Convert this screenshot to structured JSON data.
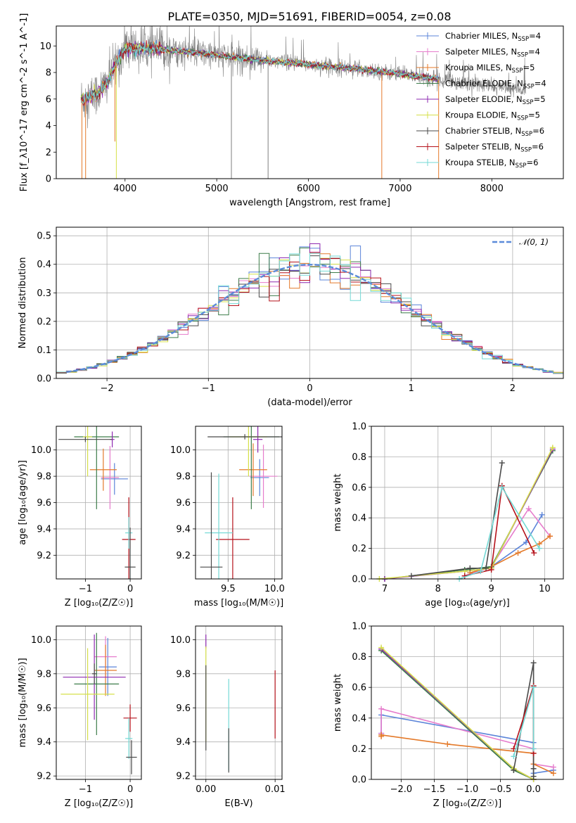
{
  "page": {
    "title": "PLATE=0350, MJD=51691, FIBERID=0054, z=0.08"
  },
  "colors": {
    "chabrier_miles": "#5b84d9",
    "salpeter_miles": "#e67ccc",
    "kroupa_miles": "#e47a2a",
    "chabrier_elodie": "#3d7d4a",
    "salpeter_elodie": "#8e29b0",
    "kroupa_elodie": "#d6e04a",
    "chabrier_stelib": "#4a4a4a",
    "salpeter_stelib": "#b5121b",
    "kroupa_stelib": "#74d9d5",
    "normal": "#5b8bd9",
    "data": "#808080"
  },
  "legend_spectrum": [
    {
      "key": "chabrier_miles",
      "label": "Chabrier MILES, N",
      "sub": "SSP",
      "suffix": "=4"
    },
    {
      "key": "salpeter_miles",
      "label": "Salpeter MILES, N",
      "sub": "SSP",
      "suffix": "=4"
    },
    {
      "key": "kroupa_miles",
      "label": "Kroupa MILES, N",
      "sub": "SSP",
      "suffix": "=5"
    },
    {
      "key": "chabrier_elodie",
      "label": "Chabrier ELODIE, N",
      "sub": "SSP",
      "suffix": "=4"
    },
    {
      "key": "salpeter_elodie",
      "label": "Salpeter ELODIE, N",
      "sub": "SSP",
      "suffix": "=5"
    },
    {
      "key": "kroupa_elodie",
      "label": "Kroupa ELODIE, N",
      "sub": "SSP",
      "suffix": "=5"
    },
    {
      "key": "chabrier_stelib",
      "label": "Chabrier STELIB, N",
      "sub": "SSP",
      "suffix": "=6"
    },
    {
      "key": "salpeter_stelib",
      "label": "Salpeter STELIB, N",
      "sub": "SSP",
      "suffix": "=6"
    },
    {
      "key": "kroupa_stelib",
      "label": "Kroupa STELIB, N",
      "sub": "SSP",
      "suffix": "=6"
    }
  ],
  "chart_data": [
    {
      "id": "spectrum",
      "type": "line",
      "xlabel": "wavelength [Angstrom, rest frame]",
      "ylabel": "Flux [f_λ10^-17 erg cm^-2 s^-1 A^-1]",
      "xlim": [
        3250,
        8780
      ],
      "ylim": [
        0,
        11.5
      ],
      "xticks": [
        4000,
        5000,
        6000,
        7000,
        8000
      ],
      "yticks": [
        0,
        2,
        4,
        6,
        8,
        10
      ],
      "continuum": [
        [
          3550,
          6.0
        ],
        [
          3700,
          6.4
        ],
        [
          3800,
          7.2
        ],
        [
          3900,
          8.6
        ],
        [
          4000,
          9.8
        ],
        [
          4300,
          9.8
        ],
        [
          4600,
          9.6
        ],
        [
          5000,
          9.3
        ],
        [
          5500,
          8.9
        ],
        [
          6000,
          8.6
        ],
        [
          6500,
          8.3
        ],
        [
          7000,
          7.9
        ],
        [
          7400,
          7.5
        ]
      ],
      "data_range": [
        3520,
        8370
      ],
      "model_range": [
        3520,
        7420
      ],
      "dips": [
        {
          "x": 3530,
          "y": 0.0
        },
        {
          "x": 3570,
          "y": 0.0
        },
        {
          "x": 3890,
          "y": 2.8
        },
        {
          "x": 3905,
          "y": 0.0
        },
        {
          "x": 5160,
          "y": 0.0
        },
        {
          "x": 5560,
          "y": 0.0
        },
        {
          "x": 6800,
          "y": 0.0
        },
        {
          "x": 7420,
          "y": 0.0
        }
      ],
      "grid": false,
      "legend": "top-right"
    },
    {
      "id": "residuals",
      "type": "area",
      "xlabel": "(data-model)/error",
      "ylabel": "Normed distribution",
      "xlim": [
        -2.5,
        2.5
      ],
      "ylim": [
        0,
        0.53
      ],
      "xticks": [
        -2,
        -1,
        0,
        1,
        2
      ],
      "xtick_labels": [
        "−2",
        "−1",
        "0",
        "1",
        "2"
      ],
      "yticks": [
        0.0,
        0.1,
        0.2,
        0.3,
        0.4,
        0.5
      ],
      "ytick_labels": [
        "0.0",
        "0.1",
        "0.2",
        "0.3",
        "0.4",
        "0.5"
      ],
      "bin_width": 0.1,
      "bins_start": -2.5,
      "normal_label": "𝒩(0, 1)",
      "normal_mean": 0,
      "normal_sigma": 1,
      "grid": true,
      "legend": "top-right"
    },
    {
      "id": "age_vs_Z",
      "type": "scatter",
      "xlabel": "Z [log₁₀(Z/Z☉)]",
      "ylabel": "age  [log₁₀(age/yr)]",
      "xlim": [
        -1.65,
        0.25
      ],
      "ylim": [
        9.02,
        10.18
      ],
      "xticks": [
        -1,
        0
      ],
      "xtick_labels": [
        "−1",
        "0"
      ],
      "yticks": [
        9.2,
        9.4,
        9.6,
        9.8,
        10.0
      ],
      "ytick_labels": [
        "9.2",
        "9.4",
        "9.6",
        "9.8",
        "10.0"
      ],
      "points": [
        {
          "key": "chabrier_miles",
          "x": -0.35,
          "y": 9.78,
          "xerr": 0.3,
          "yerr": 0.12
        },
        {
          "key": "salpeter_miles",
          "x": -0.45,
          "y": 9.79,
          "xerr": 0.2,
          "yerr": 0.24
        },
        {
          "key": "kroupa_miles",
          "x": -0.6,
          "y": 9.85,
          "xerr": 0.3,
          "yerr": 0.16
        },
        {
          "key": "chabrier_elodie",
          "x": -0.75,
          "y": 10.1,
          "xerr": 0.5,
          "yerr": 0.55
        },
        {
          "key": "salpeter_elodie",
          "x": -0.4,
          "y": 10.08,
          "xerr": 0.05,
          "yerr": 0.06
        },
        {
          "key": "kroupa_elodie",
          "x": -0.95,
          "y": 10.1,
          "xerr": 0.1,
          "yerr": 0.3
        },
        {
          "key": "chabrier_stelib",
          "x": -1.0,
          "y": 10.08,
          "xerr": 0.6,
          "yerr": 0.02
        },
        {
          "key": "salpeter_stelib",
          "x": -0.03,
          "y": 9.32,
          "xerr": 0.15,
          "yerr": 0.32
        },
        {
          "key": "kroupa_stelib",
          "x": -0.03,
          "y": 9.37,
          "xerr": 0.08,
          "yerr": 0.12
        },
        {
          "key": "chabrier_stelib",
          "x": 0.0,
          "y": 9.11,
          "xerr": 0.12,
          "yerr": 0.3
        }
      ],
      "grid": true
    },
    {
      "id": "age_vs_mass",
      "type": "scatter",
      "xlabel": "mass [log₁₀(M/M☉)]",
      "ylabel": "",
      "xlim": [
        9.15,
        10.08
      ],
      "ylim": [
        9.02,
        10.18
      ],
      "xticks": [
        9.5,
        10.0
      ],
      "xtick_labels": [
        "9.5",
        "10.0"
      ],
      "yticks": [
        9.2,
        9.4,
        9.6,
        9.8,
        10.0
      ],
      "ytick_labels": [
        "9.2",
        "9.4",
        "9.6",
        "9.8",
        "10.0"
      ],
      "points": [
        {
          "key": "chabrier_miles",
          "x": 9.84,
          "y": 9.79,
          "xerr": 0.1,
          "yerr": 0.14
        },
        {
          "key": "salpeter_miles",
          "x": 9.88,
          "y": 9.8,
          "xerr": 0.15,
          "yerr": 0.24
        },
        {
          "key": "kroupa_miles",
          "x": 9.77,
          "y": 9.85,
          "xerr": 0.15,
          "yerr": 0.2
        },
        {
          "key": "chabrier_elodie",
          "x": 9.75,
          "y": 10.1,
          "xerr": 0.3,
          "yerr": 0.55
        },
        {
          "key": "salpeter_elodie",
          "x": 9.82,
          "y": 10.08,
          "xerr": 0.05,
          "yerr": 0.1
        },
        {
          "key": "kroupa_elodie",
          "x": 9.72,
          "y": 10.1,
          "xerr": 0.2,
          "yerr": 0.3
        },
        {
          "key": "chabrier_stelib",
          "x": 9.68,
          "y": 10.1,
          "xerr": 0.4,
          "yerr": 0.02
        },
        {
          "key": "salpeter_stelib",
          "x": 9.55,
          "y": 9.32,
          "xerr": 0.18,
          "yerr": 0.32
        },
        {
          "key": "kroupa_stelib",
          "x": 9.4,
          "y": 9.37,
          "xerr": 0.15,
          "yerr": 0.45
        },
        {
          "key": "chabrier_stelib",
          "x": 9.32,
          "y": 9.11,
          "xerr": 0.12,
          "yerr": 0.72
        }
      ],
      "grid": true
    },
    {
      "id": "weight_vs_age",
      "type": "line",
      "xlabel": "age  [log₁₀(age/yr)]",
      "ylabel": "mass weight",
      "xlim": [
        6.75,
        10.35
      ],
      "ylim": [
        0,
        1.0
      ],
      "xticks": [
        7,
        8,
        9,
        10
      ],
      "xtick_labels": [
        "7",
        "8",
        "9",
        "10"
      ],
      "yticks": [
        0.0,
        0.2,
        0.4,
        0.6,
        0.8,
        1.0
      ],
      "ytick_labels": [
        "0.0",
        "0.2",
        "0.4",
        "0.6",
        "0.8",
        "1.0"
      ],
      "series": [
        {
          "key": "chabrier_miles",
          "x": [
            8.5,
            9.0,
            9.65,
            9.95
          ],
          "y": [
            0.02,
            0.08,
            0.24,
            0.42
          ]
        },
        {
          "key": "salpeter_miles",
          "x": [
            8.5,
            9.0,
            9.7,
            10.1
          ],
          "y": [
            0.02,
            0.08,
            0.46,
            0.28
          ]
        },
        {
          "key": "kroupa_miles",
          "x": [
            8.6,
            9.0,
            9.5,
            9.9,
            10.1
          ],
          "y": [
            0.04,
            0.08,
            0.17,
            0.23,
            0.28
          ]
        },
        {
          "key": "chabrier_elodie",
          "x": [
            7.0,
            8.5,
            9.0,
            10.15
          ],
          "y": [
            0.0,
            0.06,
            0.08,
            0.84
          ]
        },
        {
          "key": "salpeter_elodie",
          "x": [
            7.0,
            8.5,
            9.0,
            10.15
          ],
          "y": [
            0.0,
            0.05,
            0.07,
            0.85
          ]
        },
        {
          "key": "kroupa_elodie",
          "x": [
            6.9,
            8.5,
            9.0,
            10.15
          ],
          "y": [
            0.0,
            0.05,
            0.07,
            0.86
          ]
        },
        {
          "key": "chabrier_stelib",
          "x": [
            7.5,
            8.6,
            8.9,
            9.2
          ],
          "y": [
            0.02,
            0.07,
            0.07,
            0.76
          ]
        },
        {
          "key": "salpeter_stelib",
          "x": [
            8.5,
            9.0,
            9.2,
            9.8
          ],
          "y": [
            0.02,
            0.06,
            0.61,
            0.17
          ]
        },
        {
          "key": "kroupa_stelib",
          "x": [
            8.4,
            8.8,
            9.2,
            9.9
          ],
          "y": [
            0.0,
            0.05,
            0.6,
            0.2
          ]
        }
      ],
      "grid": true
    },
    {
      "id": "mass_vs_Z",
      "type": "scatter",
      "xlabel": "Z [log₁₀(Z/Z☉)]",
      "ylabel": "mass [log₁₀(M/M☉)]",
      "xlim": [
        -1.65,
        0.25
      ],
      "ylim": [
        9.18,
        10.08
      ],
      "xticks": [
        -1,
        0
      ],
      "xtick_labels": [
        "−1",
        "0"
      ],
      "yticks": [
        9.2,
        9.4,
        9.6,
        9.8,
        10.0
      ],
      "ytick_labels": [
        "9.2",
        "9.4",
        "9.6",
        "9.8",
        "10.0"
      ],
      "points": [
        {
          "key": "chabrier_miles",
          "x": -0.5,
          "y": 9.84,
          "xerr": 0.2,
          "yerr": 0.17
        },
        {
          "key": "salpeter_miles",
          "x": -0.55,
          "y": 9.9,
          "xerr": 0.25,
          "yerr": 0.12
        },
        {
          "key": "kroupa_miles",
          "x": -0.55,
          "y": 9.82,
          "xerr": 0.25,
          "yerr": 0.15
        },
        {
          "key": "chabrier_elodie",
          "x": -0.75,
          "y": 9.74,
          "xerr": 0.5,
          "yerr": 0.3
        },
        {
          "key": "salpeter_elodie",
          "x": -0.8,
          "y": 9.78,
          "xerr": 0.7,
          "yerr": 0.25
        },
        {
          "key": "kroupa_elodie",
          "x": -0.95,
          "y": 9.68,
          "xerr": 0.6,
          "yerr": 0.27
        },
        {
          "key": "chabrier_stelib",
          "x": -0.8,
          "y": 9.8,
          "xerr": 0.05,
          "yerr": 0.06
        },
        {
          "key": "salpeter_stelib",
          "x": 0.0,
          "y": 9.54,
          "xerr": 0.15,
          "yerr": 0.08
        },
        {
          "key": "kroupa_stelib",
          "x": -0.03,
          "y": 9.42,
          "xerr": 0.08,
          "yerr": 0.12
        },
        {
          "key": "chabrier_stelib",
          "x": 0.03,
          "y": 9.31,
          "xerr": 0.12,
          "yerr": 0.1
        }
      ],
      "grid": true
    },
    {
      "id": "mass_vs_ebv",
      "type": "scatter",
      "xlabel": "E(B-V)",
      "ylabel": "",
      "xlim": [
        -0.0015,
        0.011
      ],
      "ylim": [
        9.18,
        10.08
      ],
      "xticks": [
        0.0,
        0.01
      ],
      "xtick_labels": [
        "0.00",
        "0.01"
      ],
      "yticks": [
        9.2,
        9.4,
        9.6,
        9.8,
        10.0
      ],
      "ytick_labels": [
        "9.2",
        "9.4",
        "9.6",
        "9.8",
        "10.0"
      ],
      "points": [
        {
          "key": "salpeter_elodie",
          "x": 0.0,
          "y": 9.99,
          "xerr": 0.0,
          "yerr": 0.04
        },
        {
          "key": "kroupa_elodie",
          "x": 0.0,
          "y": 9.68,
          "xerr": 0.0,
          "yerr": 0.28
        },
        {
          "key": "chabrier_stelib",
          "x": 0.0,
          "y": 9.6,
          "xerr": 0.0,
          "yerr": 0.25
        },
        {
          "key": "kroupa_stelib",
          "x": 0.0033,
          "y": 9.5,
          "xerr": 0.0,
          "yerr": 0.27
        },
        {
          "key": "chabrier_stelib",
          "x": 0.0033,
          "y": 9.35,
          "xerr": 0.0,
          "yerr": 0.13
        },
        {
          "key": "salpeter_stelib",
          "x": 0.01,
          "y": 9.62,
          "xerr": 0.0,
          "yerr": 0.2
        }
      ],
      "grid": true
    },
    {
      "id": "weight_vs_Z",
      "type": "line",
      "xlabel": "Z [log₁₀(Z/Z☉)]",
      "ylabel": "mass weight",
      "xlim": [
        -2.45,
        0.45
      ],
      "ylim": [
        0,
        1.0
      ],
      "xticks": [
        -2.0,
        -1.5,
        -1.0,
        -0.5,
        0.0
      ],
      "xtick_labels": [
        "−2.0",
        "−1.5",
        "−1.0",
        "−0.5",
        "0.0"
      ],
      "yticks": [
        0.0,
        0.2,
        0.4,
        0.6,
        0.8,
        1.0
      ],
      "ytick_labels": [
        "0.0",
        "0.2",
        "0.4",
        "0.6",
        "0.8",
        "1.0"
      ],
      "series": [
        {
          "key": "chabrier_miles",
          "x": [
            -2.3,
            -2.3,
            0.0,
            0.0,
            0.3
          ],
          "y": [
            0.3,
            0.42,
            0.24,
            0.04,
            0.06
          ]
        },
        {
          "key": "salpeter_miles",
          "x": [
            -2.3,
            -2.3,
            0.0,
            0.0,
            0.3
          ],
          "y": [
            0.3,
            0.46,
            0.2,
            0.1,
            0.08
          ]
        },
        {
          "key": "kroupa_miles",
          "x": [
            -2.3,
            -2.3,
            -1.3,
            0.0,
            0.0,
            0.3
          ],
          "y": [
            0.28,
            0.29,
            0.23,
            0.17,
            0.1,
            0.04
          ]
        },
        {
          "key": "chabrier_elodie",
          "x": [
            -2.3,
            -0.3,
            0.0
          ],
          "y": [
            0.84,
            0.06,
            0.0
          ]
        },
        {
          "key": "salpeter_elodie",
          "x": [
            -2.3,
            -0.3,
            0.0
          ],
          "y": [
            0.85,
            0.07,
            0.0
          ]
        },
        {
          "key": "kroupa_elodie",
          "x": [
            -2.3,
            -0.3,
            0.0
          ],
          "y": [
            0.86,
            0.07,
            0.0
          ]
        },
        {
          "key": "chabrier_stelib",
          "x": [
            -0.3,
            0.0,
            0.0,
            0.0
          ],
          "y": [
            0.06,
            0.76,
            0.07,
            0.02
          ]
        },
        {
          "key": "salpeter_stelib",
          "x": [
            -0.3,
            0.0,
            0.0
          ],
          "y": [
            0.2,
            0.61,
            0.17
          ]
        },
        {
          "key": "kroupa_stelib",
          "x": [
            -0.3,
            0.0,
            0.0
          ],
          "y": [
            0.15,
            0.6,
            0.2
          ]
        }
      ],
      "grid": true
    }
  ]
}
